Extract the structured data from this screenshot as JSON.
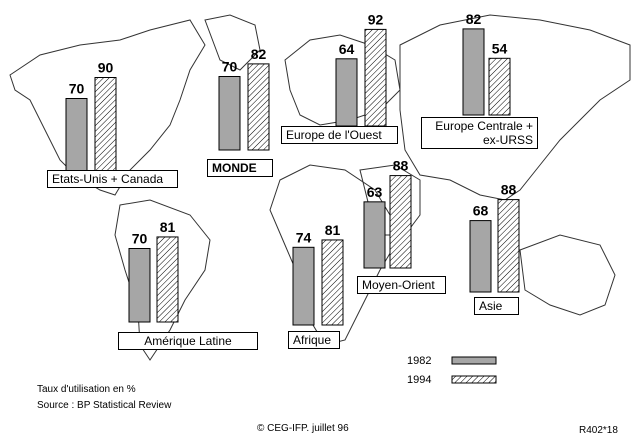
{
  "chart_data": {
    "type": "bar",
    "categories": [
      "Etats-Unis + Canada",
      "MONDE",
      "Europe de l'Ouest",
      "Europe Centrale + ex-URSS",
      "Amérique Latine",
      "Afrique",
      "Moyen-Orient",
      "Asie"
    ],
    "series": [
      {
        "name": "1982",
        "color": "#a6a6a6",
        "values": [
          70,
          70,
          64,
          82,
          70,
          74,
          63,
          68
        ]
      },
      {
        "name": "1994",
        "color": "#000000",
        "values": [
          90,
          82,
          92,
          54,
          81,
          81,
          88,
          88
        ]
      }
    ],
    "notes": [
      "Taux d'utilisation en %",
      "Source : BP Statistical Review"
    ],
    "footer": "© CEG-IFP.  juillet 96",
    "reference": "R402*18"
  }
}
